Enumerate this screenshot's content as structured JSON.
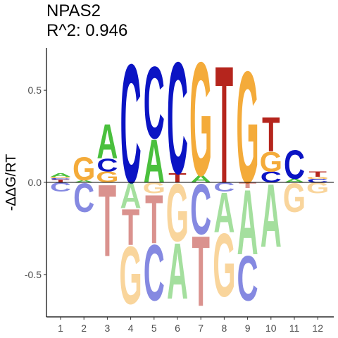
{
  "chart_data": {
    "type": "sequence-logo",
    "title_line1": "NPAS2",
    "title_line2": "R^2: 0.946",
    "ylabel": "-ΔΔG/RT",
    "ylim": [
      -0.73,
      0.73
    ],
    "yticks": [
      -0.5,
      0.0,
      0.5
    ],
    "ytick_labels": [
      "-0.5",
      "0.0",
      "0.5"
    ],
    "positions": [
      "1",
      "2",
      "3",
      "4",
      "5",
      "6",
      "7",
      "8",
      "9",
      "10",
      "11",
      "12"
    ],
    "base_colors": {
      "A": "#4ac03d",
      "C": "#0b14c4",
      "G": "#f4ab3a",
      "T": "#b5251d"
    },
    "positive": [
      [
        {
          "b": "T",
          "v": 0.015
        },
        {
          "b": "C",
          "v": 0.008
        },
        {
          "b": "G",
          "v": 0.008
        },
        {
          "b": "A",
          "v": 0.02
        }
      ],
      [
        {
          "b": "A",
          "v": 0.012
        },
        {
          "b": "G",
          "v": 0.13
        }
      ],
      [
        {
          "b": "G",
          "v": 0.06
        },
        {
          "b": "C",
          "v": 0.07
        },
        {
          "b": "A",
          "v": 0.19
        }
      ],
      [
        {
          "b": "C",
          "v": 0.66
        }
      ],
      [
        {
          "b": "A",
          "v": 0.24
        },
        {
          "b": "C",
          "v": 0.4
        }
      ],
      [
        {
          "b": "T",
          "v": 0.05
        },
        {
          "b": "C",
          "v": 0.62
        }
      ],
      [
        {
          "b": "A",
          "v": 0.04
        },
        {
          "b": "G",
          "v": 0.63
        }
      ],
      [
        {
          "b": "T",
          "v": 0.65
        }
      ],
      [
        {
          "b": "G",
          "v": 0.62
        }
      ],
      [
        {
          "b": "C",
          "v": 0.06
        },
        {
          "b": "G",
          "v": 0.11
        },
        {
          "b": "T",
          "v": 0.19
        }
      ],
      [
        {
          "b": "A",
          "v": 0.02
        },
        {
          "b": "C",
          "v": 0.16
        }
      ],
      [
        {
          "b": "C",
          "v": 0.02
        },
        {
          "b": "G",
          "v": 0.01
        },
        {
          "b": "T",
          "v": 0.03
        }
      ]
    ],
    "negative": [
      [
        {
          "b": "C",
          "v": 0.05
        }
      ],
      [
        {
          "b": "C",
          "v": 0.16
        }
      ],
      [
        {
          "b": "T",
          "v": 0.4
        }
      ],
      [
        {
          "b": "A",
          "v": 0.14
        },
        {
          "b": "T",
          "v": 0.2
        },
        {
          "b": "G",
          "v": 0.32
        }
      ],
      [
        {
          "b": "G",
          "v": 0.06
        },
        {
          "b": "T",
          "v": 0.27
        },
        {
          "b": "C",
          "v": 0.31
        }
      ],
      [
        {
          "b": "G",
          "v": 0.32
        },
        {
          "b": "A",
          "v": 0.31
        }
      ],
      [
        {
          "b": "C",
          "v": 0.28
        },
        {
          "b": "T",
          "v": 0.39
        }
      ],
      [
        {
          "b": "C",
          "v": 0.05
        },
        {
          "b": "A",
          "v": 0.22
        },
        {
          "b": "G",
          "v": 0.35
        }
      ],
      [
        {
          "b": "T",
          "v": 0.03
        },
        {
          "b": "A",
          "v": 0.36
        },
        {
          "b": "C",
          "v": 0.25
        }
      ],
      [
        {
          "b": "A",
          "v": 0.35
        }
      ],
      [
        {
          "b": "G",
          "v": 0.16
        }
      ],
      [
        {
          "b": "G",
          "v": 0.06
        }
      ]
    ]
  }
}
